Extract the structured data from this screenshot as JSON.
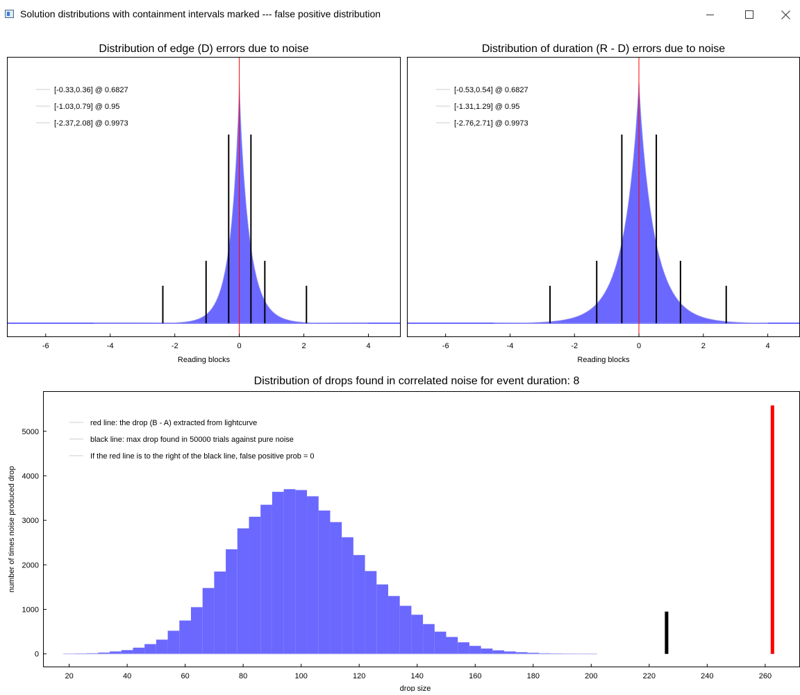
{
  "window": {
    "title": "Solution distributions with containment intervals marked --- false positive distribution"
  },
  "icons": {
    "app": "app-window-icon",
    "minimize": "minimize-icon",
    "maximize": "maximize-icon",
    "close": "close-icon"
  },
  "colors": {
    "histogram_fill": "#6b68ff",
    "observed_line": "#ff0000",
    "interval_line": "#000000",
    "legend_swatch": "#d8d8d8"
  },
  "chart_data": [
    {
      "type": "bar",
      "title": "Distribution of edge (D) errors due to noise",
      "xlabel": "Reading blocks",
      "ylabel": "",
      "xlim": [
        -7.2,
        5.0
      ],
      "x_ticks": [
        -6,
        -4,
        -2,
        0,
        2,
        4
      ],
      "y_ticks_shown": false,
      "distribution_shape": "laplace-like peaked",
      "peak_at": 0,
      "scale_left": 0.28,
      "scale_right": 0.31,
      "red_marker_x": 0,
      "legend": {
        "position": "top-left",
        "entries": [
          "[-0.33,0.36] @ 0.6827",
          "[-1.03,0.79] @ 0.95",
          "[-2.37,2.08] @ 0.9973"
        ]
      },
      "intervals": [
        {
          "level": 0.6827,
          "low": -0.33,
          "high": 0.36
        },
        {
          "level": 0.95,
          "low": -1.03,
          "high": 0.79
        },
        {
          "level": 0.9973,
          "low": -2.37,
          "high": 2.08
        }
      ]
    },
    {
      "type": "bar",
      "title": "Distribution of duration (R - D) errors due to noise",
      "xlabel": "Reading blocks",
      "ylabel": "",
      "xlim": [
        -7.2,
        5.0
      ],
      "x_ticks": [
        -6,
        -4,
        -2,
        0,
        2,
        4
      ],
      "y_ticks_shown": false,
      "distribution_shape": "laplace-like peaked",
      "peak_at": 0,
      "scale_left": 0.48,
      "scale_right": 0.48,
      "red_marker_x": 0,
      "legend": {
        "position": "top-left",
        "entries": [
          "[-0.53,0.54] @ 0.6827",
          "[-1.31,1.29] @ 0.95",
          "[-2.76,2.71] @ 0.9973"
        ]
      },
      "intervals": [
        {
          "level": 0.6827,
          "low": -0.53,
          "high": 0.54
        },
        {
          "level": 0.95,
          "low": -1.31,
          "high": 1.29
        },
        {
          "level": 0.9973,
          "low": -2.76,
          "high": 2.71
        }
      ]
    },
    {
      "type": "bar",
      "title": "Distribution of drops found in correlated noise for event duration: 8",
      "xlabel": "drop size",
      "ylabel": "number of times noise produced drop",
      "xlim": [
        11,
        272
      ],
      "ylim": [
        -300,
        5900
      ],
      "x_ticks": [
        20,
        40,
        60,
        80,
        100,
        120,
        140,
        160,
        180,
        200,
        220,
        240,
        260
      ],
      "y_ticks": [
        0,
        1000,
        2000,
        3000,
        4000,
        5000
      ],
      "bin_width": 4,
      "bins_start": 18,
      "values": [
        5,
        10,
        15,
        30,
        55,
        85,
        140,
        220,
        320,
        520,
        750,
        1050,
        1480,
        1850,
        2350,
        2820,
        3080,
        3350,
        3640,
        3700,
        3680,
        3540,
        3220,
        2960,
        2620,
        2220,
        1860,
        1560,
        1300,
        1080,
        880,
        670,
        500,
        380,
        260,
        180,
        120,
        80,
        55,
        38,
        25,
        15,
        10,
        6,
        3,
        2
      ],
      "black_line": {
        "x": 226,
        "height": 950
      },
      "red_line": {
        "x": 262.5,
        "height": 5580
      },
      "legend": {
        "position": "top-left",
        "entries": [
          "red line: the drop (B - A) extracted from lightcurve",
          "black line: max drop found in 50000 trials against pure noise",
          "If the red line is to the right of the black line, false positive prob = 0"
        ]
      }
    }
  ]
}
